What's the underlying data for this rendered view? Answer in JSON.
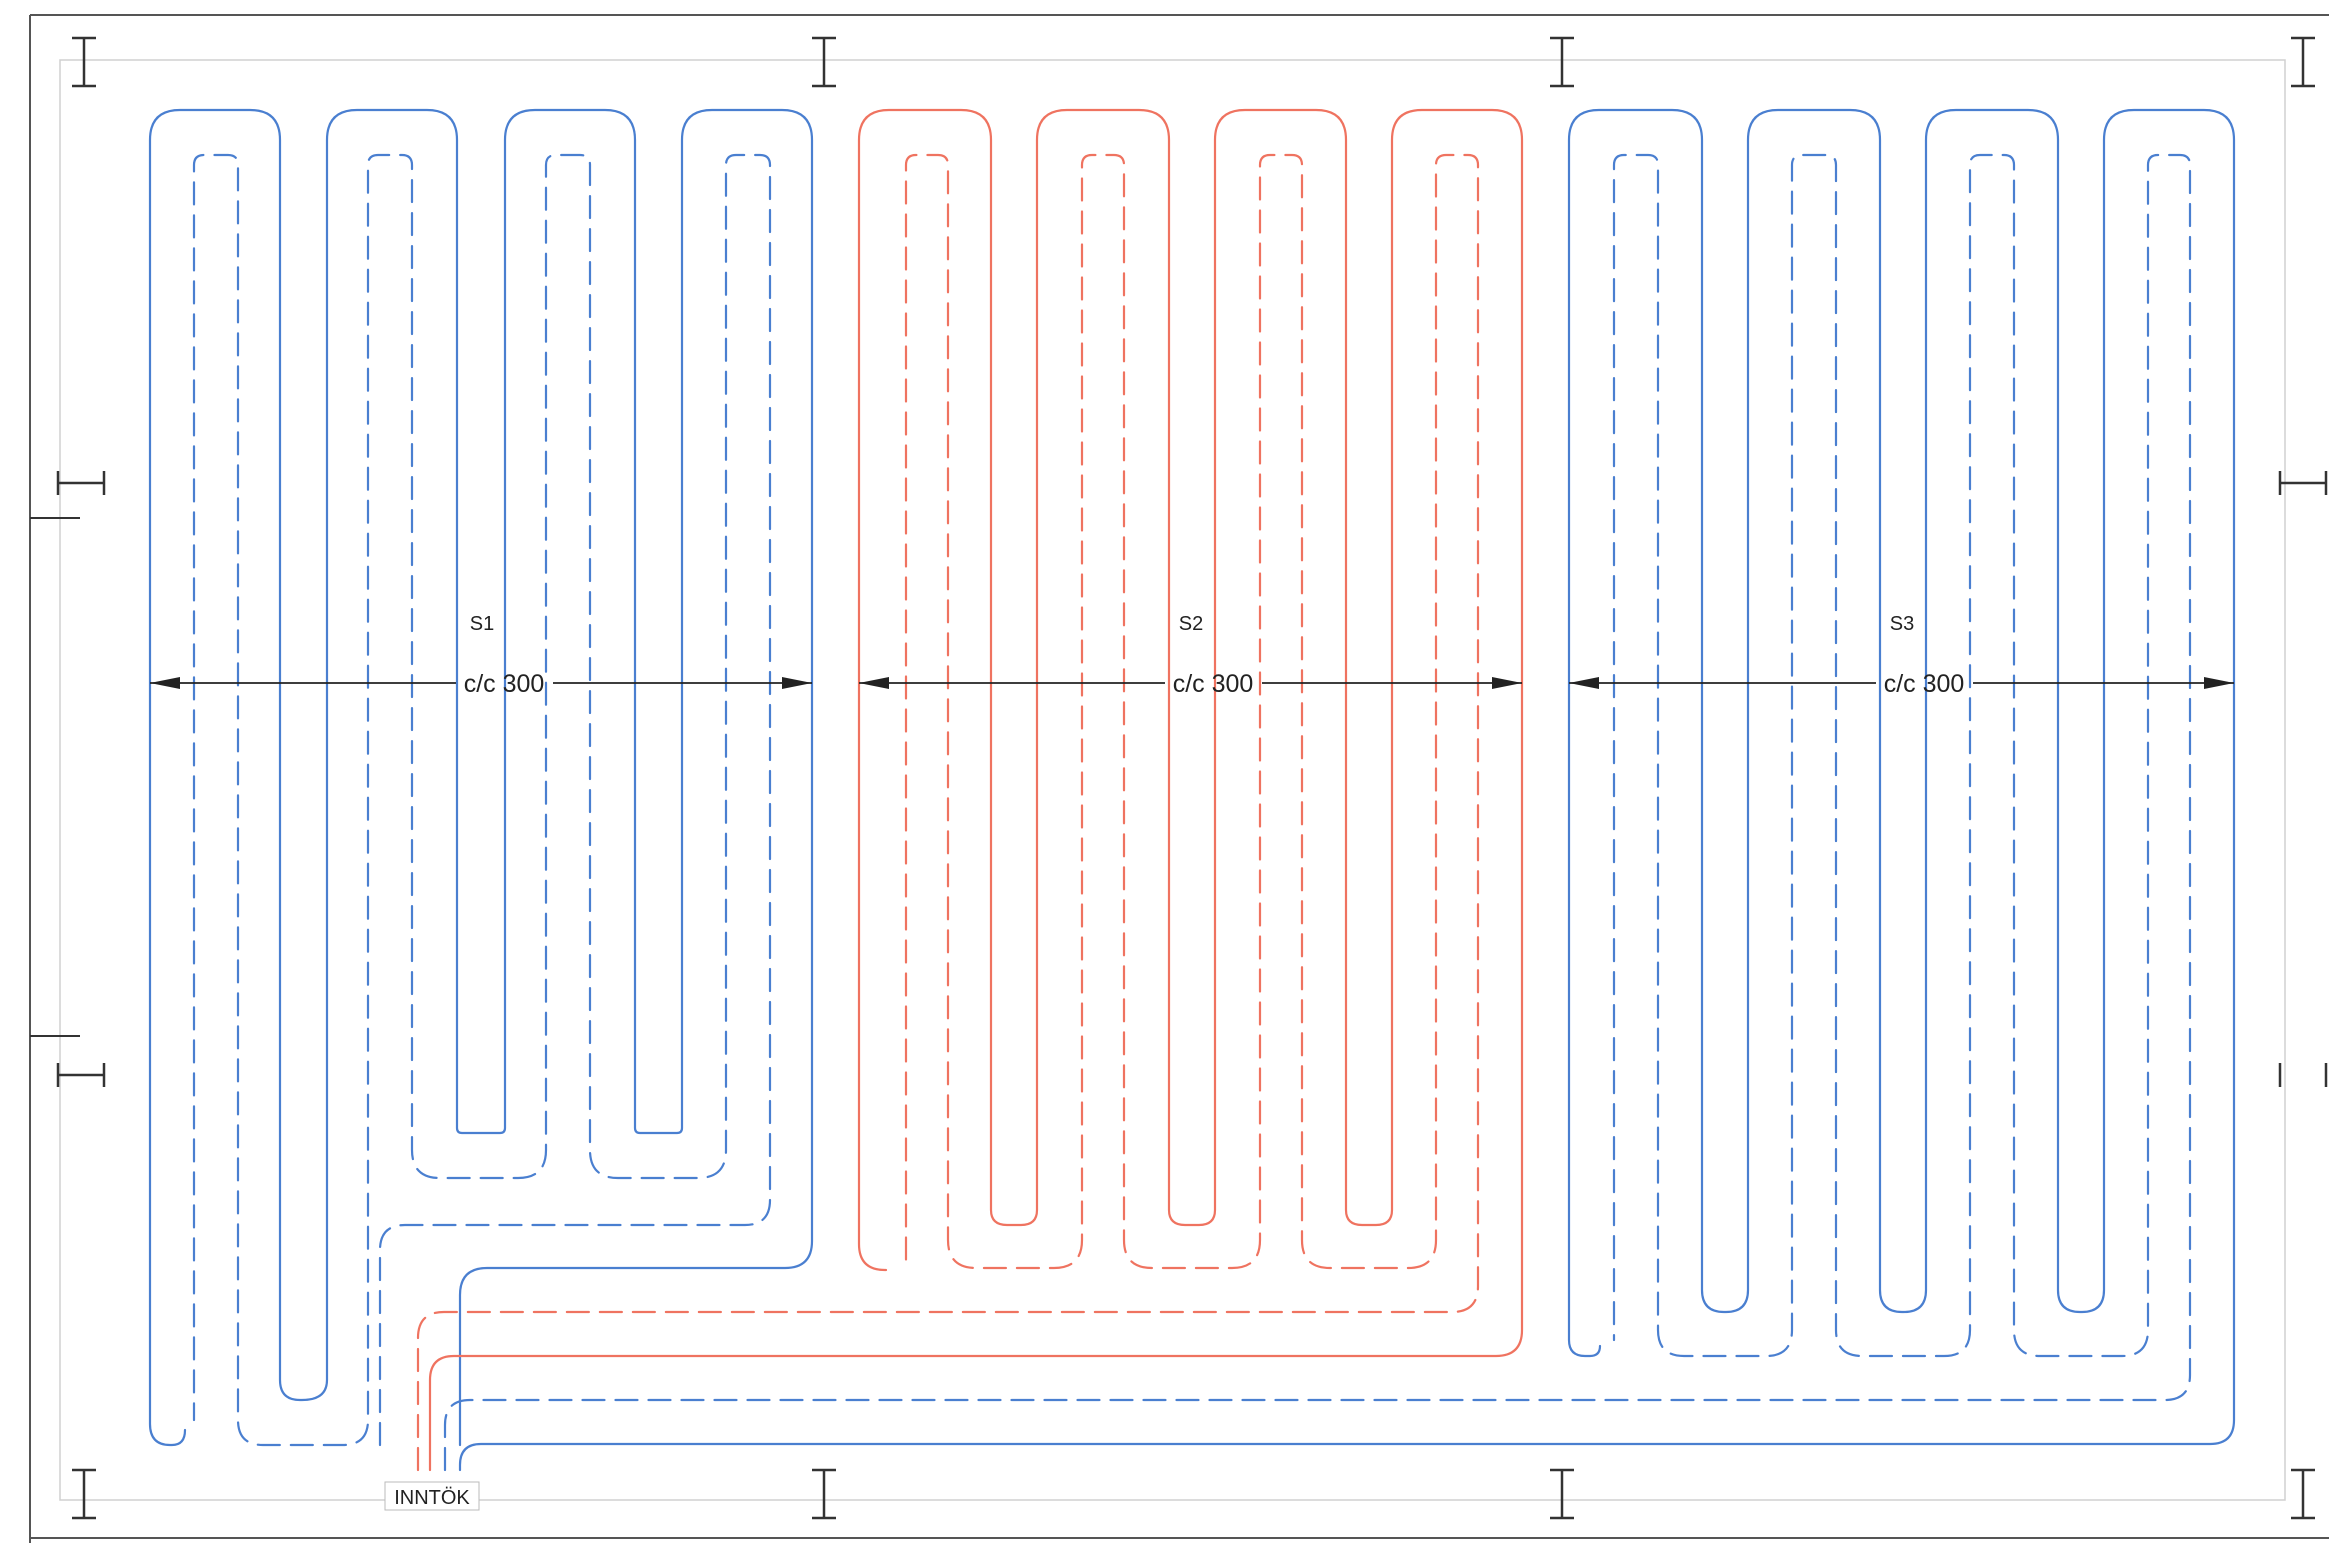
{
  "circuits": [
    {
      "id": "s1",
      "name": "S1",
      "spacing_label": "c/c 300",
      "supply_color": "#4a7fd0",
      "return_color": "#4a7fd0"
    },
    {
      "id": "s2",
      "name": "S2",
      "spacing_label": "c/c 300",
      "supply_color": "#ef7360",
      "return_color": "#ef7360"
    },
    {
      "id": "s3",
      "name": "S3",
      "spacing_label": "c/c 300",
      "supply_color": "#4a7fd0",
      "return_color": "#4a7fd0"
    }
  ],
  "inlet_label": "INNTÖK",
  "colors": {
    "frame": "#333333",
    "dimension": "#222222",
    "thin_frame": "#c8c8c8"
  }
}
